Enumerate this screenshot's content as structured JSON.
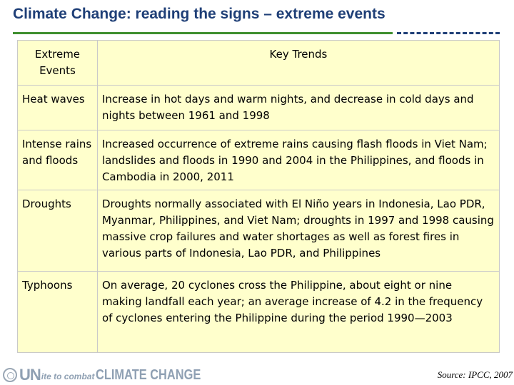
{
  "title": "Climate Change: reading the signs – extreme events",
  "table": {
    "header": {
      "col1": "Extreme Events",
      "col2": "Key Trends"
    },
    "rows": [
      {
        "event": "Heat waves",
        "trend": "Increase in hot days and warm nights, and decrease in cold days and nights between 1961 and 1998"
      },
      {
        "event": "Intense rains and floods",
        "trend": "Increased occurrence of extreme rains causing flash floods in Viet Nam; landslides and floods in 1990 and 2004 in the Philippines, and floods in Cambodia in 2000, 2011"
      },
      {
        "event": "Droughts",
        "trend": "Droughts normally associated with El Niño years in Indonesia, Lao PDR, Myanmar, Philippines, and Viet Nam; droughts in 1997 and 1998 causing massive crop failures and water shortages as well as forest fires in various parts of Indonesia, Lao PDR, and Philippines"
      },
      {
        "event": "Typhoons",
        "trend": "On average, 20 cyclones cross the Philippine, about eight or nine making landfall each year; an average increase of 4.2 in the frequency of cyclones entering the Philippine during the period 1990—2003"
      }
    ]
  },
  "footer": {
    "logo": {
      "main": "UN",
      "mid": "ite to combat",
      "end": "CLIMATE CHANGE",
      "icon": "un-emblem-icon"
    },
    "source": "Source: IPCC, 2007"
  },
  "colors": {
    "title": "#1f3f77",
    "rule_solid": "#3f8f2f",
    "rule_dashed": "#1f3f77",
    "cell_bg": "#ffffcc",
    "logo": "#8fa0b3"
  }
}
